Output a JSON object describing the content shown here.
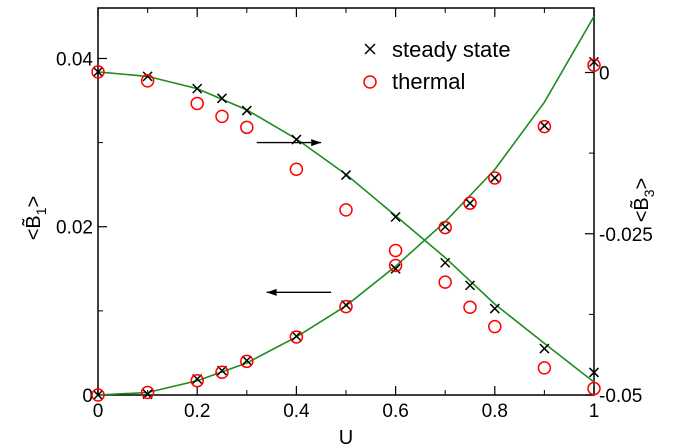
{
  "chart_data": {
    "type": "scatter",
    "title": "",
    "xlabel": "U",
    "ylabel_left": "<B̃1>",
    "ylabel_right": "<B̃3>",
    "xlim": [
      0,
      1
    ],
    "ylim_left": [
      0,
      0.046
    ],
    "ylim_right": [
      -0.05,
      0.01
    ],
    "xticks": [
      0,
      0.2,
      0.4,
      0.6,
      0.8,
      1
    ],
    "xtick_labels": [
      "0",
      "0.2",
      "0.4",
      "0.6",
      "0.8",
      "1"
    ],
    "yticks_left": [
      0,
      0.02,
      0.04
    ],
    "ytick_labels_left": [
      "0",
      "0.02",
      "0.04"
    ],
    "yticks_right": [
      -0.05,
      -0.025,
      0
    ],
    "ytick_labels_right": [
      "-0.05",
      "-0.025",
      "0"
    ],
    "grid": false,
    "legend": {
      "placement": "top-right",
      "entries": [
        {
          "label": "steady state",
          "marker": "x",
          "color": "#000000"
        },
        {
          "label": "thermal",
          "marker": "circle-open",
          "color": "#ff0000"
        }
      ]
    },
    "series": [
      {
        "name": "steady state",
        "axis": "left",
        "marker": "x",
        "color": "#000000",
        "x": [
          0,
          0.1,
          0.2,
          0.25,
          0.3,
          0.4,
          0.5,
          0.6,
          0.7,
          0.75,
          0.8,
          0.9,
          1.0
        ],
        "y": [
          0,
          0.0001,
          0.0019,
          0.0029,
          0.0041,
          0.007,
          0.0107,
          0.015,
          0.02,
          0.0228,
          0.0258,
          0.032,
          0.0396
        ]
      },
      {
        "name": "thermal",
        "axis": "left",
        "marker": "circle-open",
        "color": "#ff0000",
        "x": [
          0,
          0.1,
          0.2,
          0.25,
          0.3,
          0.4,
          0.5,
          0.6,
          0.7,
          0.75,
          0.8,
          0.9,
          1.0
        ],
        "y": [
          0,
          0.0003,
          0.0017,
          0.0027,
          0.004,
          0.0069,
          0.0105,
          0.0154,
          0.0199,
          0.0228,
          0.0258,
          0.0319,
          0.0392
        ]
      },
      {
        "name": "steady state",
        "axis": "right",
        "marker": "x",
        "color": "#000000",
        "x": [
          0,
          0.1,
          0.2,
          0.25,
          0.3,
          0.4,
          0.5,
          0.6,
          0.7,
          0.75,
          0.8,
          0.9,
          1.0
        ],
        "y": [
          0.0001,
          -0.0006,
          -0.0025,
          -0.004,
          -0.0059,
          -0.0104,
          -0.0159,
          -0.0224,
          -0.0295,
          -0.033,
          -0.0366,
          -0.0428,
          -0.0465
        ]
      },
      {
        "name": "thermal",
        "axis": "right",
        "marker": "circle-open",
        "color": "#ff0000",
        "x": [
          0,
          0.1,
          0.2,
          0.25,
          0.3,
          0.4,
          0.5,
          0.6,
          0.7,
          0.75,
          0.8,
          0.9,
          1.0
        ],
        "y": [
          0.0001,
          -0.0013,
          -0.0048,
          -0.0068,
          -0.0085,
          -0.015,
          -0.0213,
          -0.0276,
          -0.0325,
          -0.0364,
          -0.0394,
          -0.0458,
          -0.049
        ]
      },
      {
        "name": "",
        "axis": "left",
        "type": "line",
        "color": "#1e8c1e",
        "x": [
          0,
          0.1,
          0.2,
          0.3,
          0.4,
          0.5,
          0.6,
          0.7,
          0.8,
          0.9,
          1.0
        ],
        "y": [
          0,
          0.0003,
          0.0017,
          0.0038,
          0.0069,
          0.0106,
          0.0153,
          0.0206,
          0.0268,
          0.0348,
          0.045
        ]
      },
      {
        "name": "",
        "axis": "right",
        "type": "line",
        "color": "#1e8c1e",
        "x": [
          0,
          0.1,
          0.2,
          0.3,
          0.4,
          0.5,
          0.6,
          0.7,
          0.8,
          0.9,
          1.0
        ],
        "y": [
          0.0001,
          -0.0006,
          -0.0025,
          -0.0058,
          -0.0103,
          -0.0158,
          -0.0222,
          -0.0287,
          -0.0359,
          -0.042,
          -0.048
        ]
      }
    ],
    "annotations": [
      {
        "type": "arrow",
        "direction": "right",
        "points_to_axis": "right",
        "x_start": 0.32,
        "x_end": 0.45,
        "y": 0.03,
        "y_axis": "left"
      },
      {
        "type": "arrow",
        "direction": "left",
        "points_to_axis": "left",
        "x_start": 0.47,
        "x_end": 0.34,
        "y": 0.0122,
        "y_axis": "left"
      }
    ]
  }
}
